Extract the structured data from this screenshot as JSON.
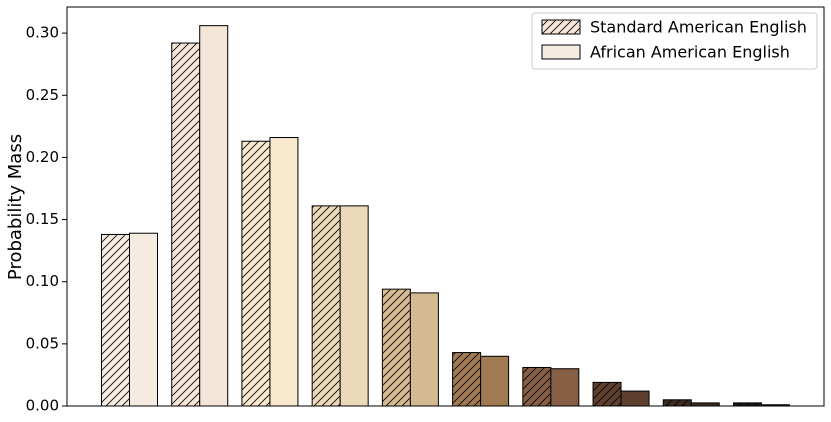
{
  "chart_data": {
    "type": "bar",
    "y_label": "Probability Mass",
    "categories": [
      null,
      null,
      null,
      null,
      null,
      null,
      null,
      null,
      null,
      null
    ],
    "category_colors": [
      "#f5ebe1",
      "#f3e5d8",
      "#f7e8ce",
      "#ebd9b9",
      "#d5b991",
      "#a07b52",
      "#865e43",
      "#5f402f",
      "#3c2c22",
      "#1f1b17"
    ],
    "series": [
      {
        "name": "Standard American English",
        "color": "#f3e5d8",
        "hatch": "///",
        "values": [
          0.138,
          0.292,
          0.213,
          0.161,
          0.094,
          0.043,
          0.031,
          0.019,
          0.005,
          0.0025
        ]
      },
      {
        "name": "African American English",
        "color": "#f5ebe1",
        "hatch": null,
        "values": [
          0.139,
          0.306,
          0.216,
          0.161,
          0.091,
          0.04,
          0.03,
          0.012,
          0.0025,
          0.001
        ]
      }
    ],
    "ylim": [
      0,
      0.321
    ],
    "yticks": [
      {
        "value": 0,
        "label": "0.00"
      },
      {
        "value": 0.05,
        "label": "0.05"
      },
      {
        "value": 0.1,
        "label": "0.10"
      },
      {
        "value": 0.15,
        "label": "0.15"
      },
      {
        "value": 0.2,
        "label": "0.20"
      },
      {
        "value": 0.25,
        "label": "0.25"
      },
      {
        "value": 0.3,
        "label": "0.30"
      }
    ],
    "legend": "upper right"
  }
}
